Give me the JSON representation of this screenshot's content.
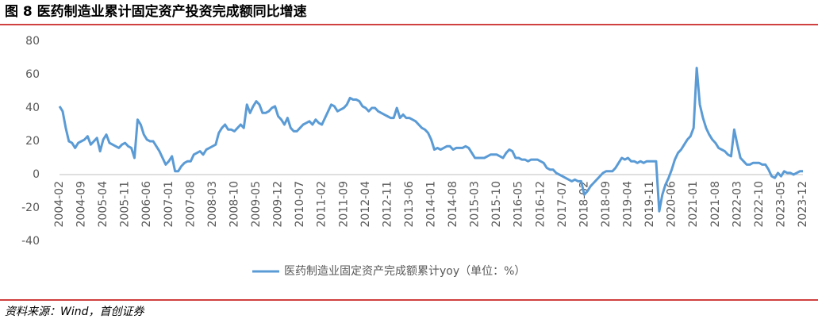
{
  "chart_data": {
    "type": "line",
    "title": "图 8 医药制造业累计固定资产投资完成额同比增速",
    "source": "资料来源：Wind，首创证券",
    "categories": [
      "2004-02",
      null,
      null,
      null,
      null,
      null,
      null,
      "2004-09",
      null,
      null,
      null,
      null,
      null,
      null,
      "2005-04",
      null,
      null,
      null,
      null,
      null,
      null,
      "2005-11",
      null,
      null,
      null,
      null,
      null,
      null,
      "2006-06",
      null,
      null,
      null,
      null,
      null,
      null,
      "2007-01",
      null,
      null,
      null,
      null,
      null,
      null,
      "2007-08",
      null,
      null,
      null,
      null,
      null,
      null,
      "2008-03",
      null,
      null,
      null,
      null,
      null,
      null,
      "2008-10",
      null,
      null,
      null,
      null,
      null,
      null,
      "2009-05",
      null,
      null,
      null,
      null,
      null,
      null,
      "2009-12",
      null,
      null,
      null,
      null,
      null,
      null,
      "2010-07",
      null,
      null,
      null,
      null,
      null,
      null,
      "2011-02",
      null,
      null,
      null,
      null,
      null,
      null,
      "2011-09",
      null,
      null,
      null,
      null,
      null,
      null,
      "2012-04",
      null,
      null,
      null,
      null,
      null,
      null,
      "2012-11",
      null,
      null,
      null,
      null,
      null,
      null,
      "2013-06",
      null,
      null,
      null,
      null,
      null,
      null,
      "2014-01",
      null,
      null,
      null,
      null,
      null,
      null,
      "2014-08",
      null,
      null,
      null,
      null,
      null,
      null,
      "2015-03",
      null,
      null,
      null,
      null,
      null,
      null,
      "2015-10",
      null,
      null,
      null,
      null,
      null,
      null,
      "2016-05",
      null,
      null,
      null,
      null,
      null,
      null,
      "2016-12",
      null,
      null,
      null,
      null,
      null,
      null,
      "2017-07",
      null,
      null,
      null,
      null,
      null,
      null,
      "2018-02",
      null,
      null,
      null,
      null,
      null,
      null,
      "2018-09",
      null,
      null,
      null,
      null,
      null,
      null,
      "2019-04",
      null,
      null,
      null,
      null,
      null,
      null,
      "2019-11",
      null,
      null,
      null,
      null,
      null,
      null,
      "2020-06",
      null,
      null,
      null,
      null,
      null,
      null,
      "2021-01",
      null,
      null,
      null,
      null,
      null,
      null,
      "2021-08",
      null,
      null,
      null,
      null,
      null,
      null,
      "2022-03",
      null,
      null,
      null,
      null,
      null,
      null,
      "2022-10",
      null,
      null,
      null,
      null,
      null,
      null,
      "2023-05",
      null,
      null,
      null,
      null,
      null,
      null,
      "2023-12"
    ],
    "series": [
      {
        "name": "医药制造业固定资产完成额累计yoy（单位：%）",
        "color": "#5b9bd5",
        "values": [
          41,
          38,
          28,
          20,
          19,
          16,
          19,
          20,
          21,
          23,
          18,
          20,
          22,
          14,
          21,
          24,
          19,
          18,
          17,
          16,
          18,
          19,
          17,
          16,
          10,
          33,
          30,
          24,
          21,
          20,
          20,
          17,
          14,
          10,
          6,
          8,
          11,
          2,
          2,
          5,
          7,
          8,
          8,
          12,
          13,
          14,
          12,
          15,
          16,
          17,
          18,
          25,
          28,
          30,
          27,
          27,
          26,
          28,
          30,
          28,
          42,
          37,
          41,
          44,
          42,
          37,
          37,
          38,
          40,
          41,
          35,
          33,
          30,
          34,
          28,
          26,
          26,
          28,
          30,
          31,
          32,
          30,
          33,
          31,
          30,
          34,
          38,
          42,
          41,
          38,
          39,
          40,
          42,
          46,
          45,
          45,
          44,
          41,
          40,
          38,
          40,
          40,
          38,
          37,
          36,
          35,
          34,
          34,
          40,
          34,
          36,
          34,
          34,
          33,
          32,
          30,
          28,
          27,
          25,
          21,
          15,
          16,
          15,
          16,
          17,
          17,
          15,
          16,
          16,
          16,
          17,
          16,
          13,
          10,
          10,
          10,
          10,
          11,
          12,
          12,
          12,
          11,
          10,
          13,
          15,
          14,
          10,
          10,
          9,
          9,
          8,
          9,
          9,
          9,
          8,
          7,
          4,
          3,
          3,
          1,
          0,
          -1,
          -2,
          -3,
          -4,
          -3,
          -4,
          -4,
          -12,
          -10,
          -7,
          -5,
          -3,
          -1,
          1,
          2,
          2,
          2,
          4,
          7,
          10,
          9,
          10,
          8,
          8,
          7,
          8,
          7,
          8,
          8,
          8,
          8,
          -22,
          -12,
          -6,
          -2,
          3,
          9,
          13,
          15,
          18,
          21,
          23,
          28,
          64,
          42,
          34,
          28,
          24,
          21,
          19,
          16,
          15,
          14,
          12,
          11,
          27,
          18,
          10,
          8,
          6,
          6,
          7,
          7,
          7,
          6,
          6,
          3,
          -1,
          -2,
          1,
          -1,
          2,
          1,
          1,
          0,
          1,
          2,
          2
        ]
      }
    ],
    "ylim": [
      -40,
      80
    ],
    "yticks": [
      -40,
      -20,
      0,
      20,
      40,
      60,
      80
    ],
    "grid": false
  }
}
